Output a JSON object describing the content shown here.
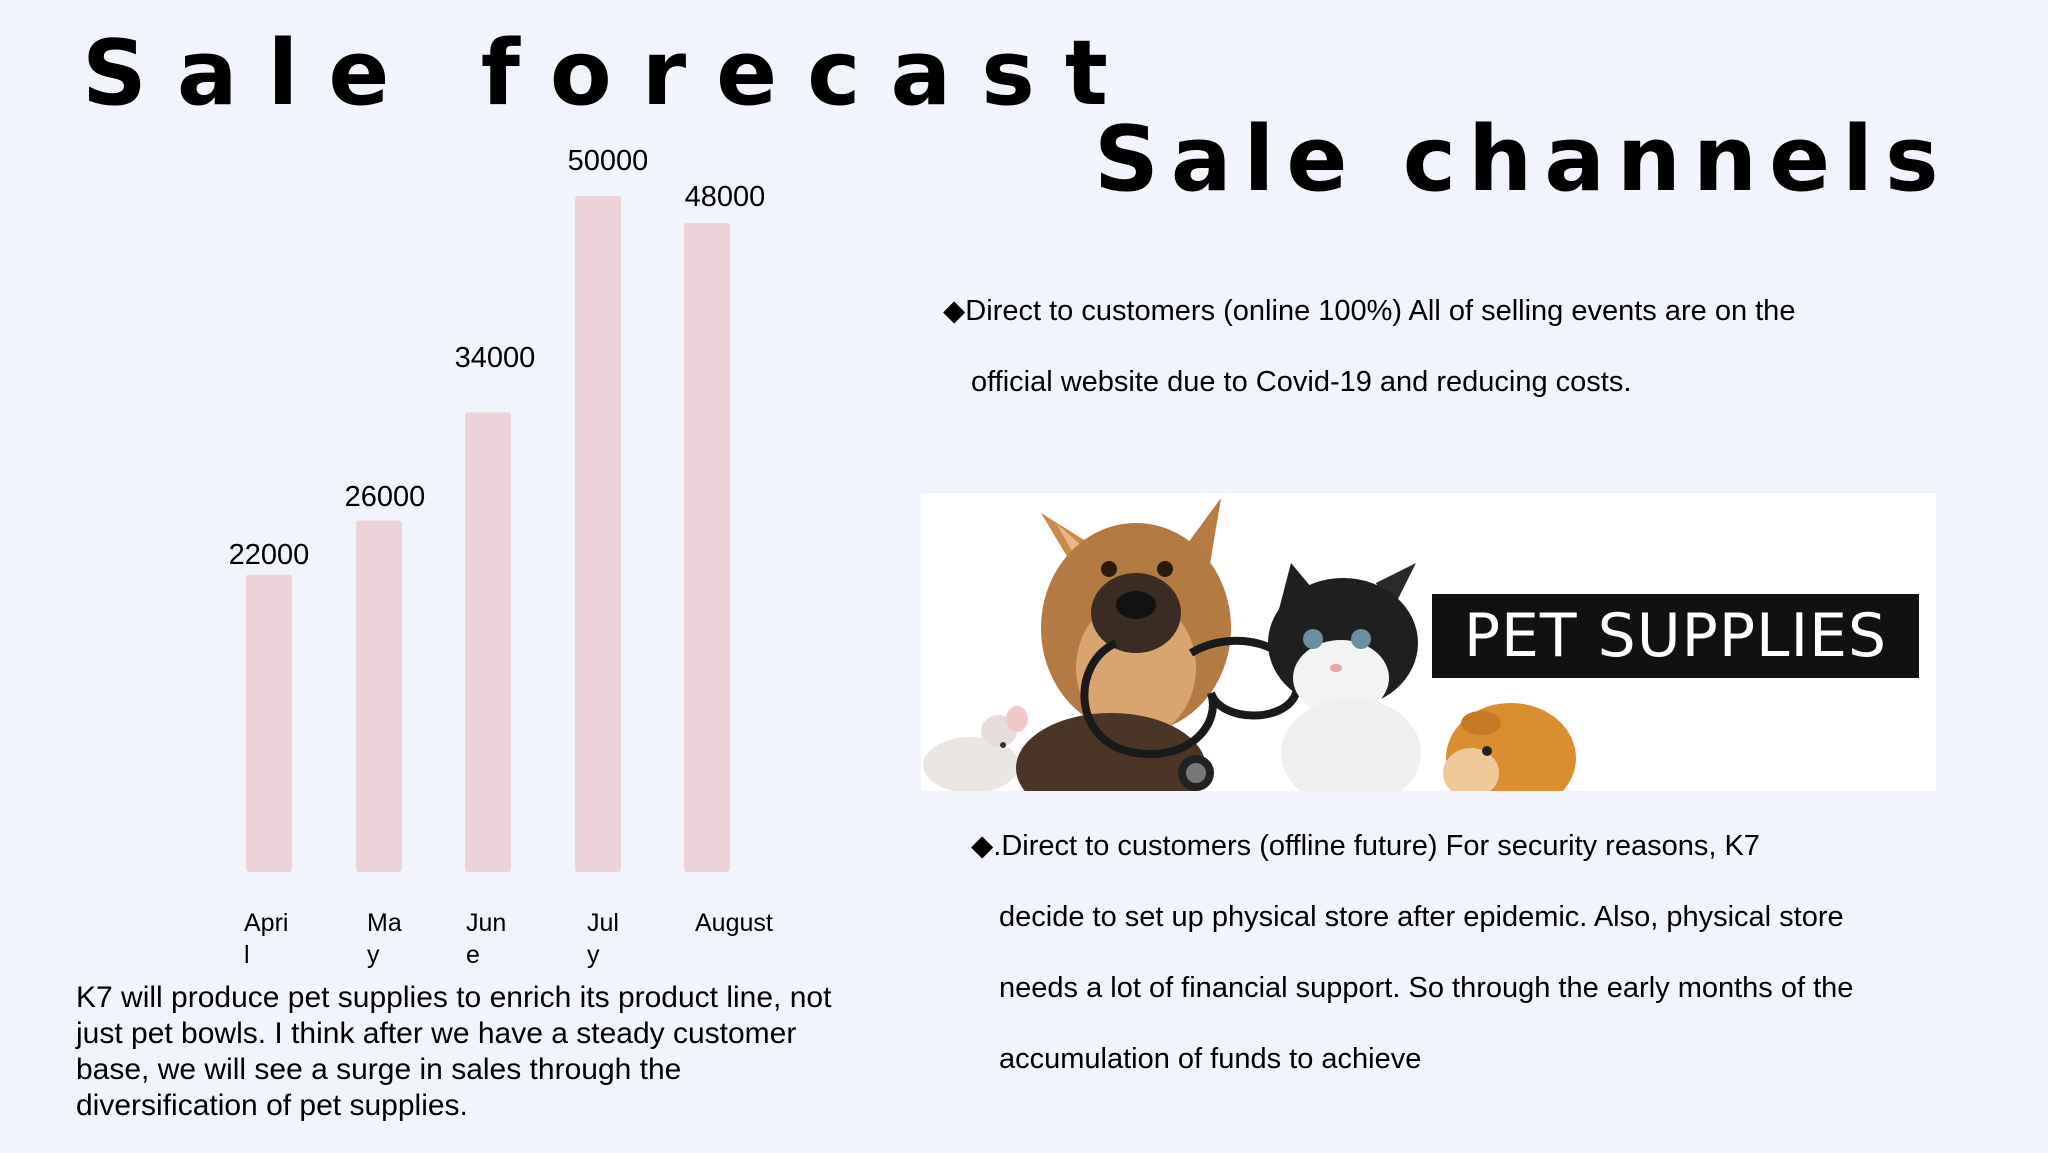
{
  "titles": {
    "left": "Sale forecast",
    "right": "Sale channels"
  },
  "chart_data": {
    "type": "bar",
    "categories": [
      "April",
      "May",
      "June",
      "July",
      "August"
    ],
    "values": [
      22000,
      26000,
      34000,
      50000,
      48000
    ],
    "title": "",
    "xlabel": "",
    "ylabel": "",
    "ylim": [
      0,
      50000
    ],
    "grid": false,
    "bar_color": "#ecd3d9"
  },
  "chart_labels": {
    "values": [
      "22000",
      "26000",
      "34000",
      "50000",
      "48000"
    ],
    "categories": [
      {
        "line1": "Apri",
        "line2": "l"
      },
      {
        "line1": "Ma",
        "line2": "y"
      },
      {
        "line1": "Jun",
        "line2": "e"
      },
      {
        "line1": "Jul",
        "line2": "y"
      },
      {
        "line1": "August",
        "line2": ""
      }
    ]
  },
  "description": "K7 will produce pet supplies to enrich its product line, not just pet bowls. I think after we have a steady customer base, we will see a surge in sales through the diversification of pet supplies.",
  "channels": {
    "online": {
      "lines": [
        "◆Direct to customers (online 100%) All of selling events are on the",
        "official website  due to Covid-19 and reducing costs."
      ]
    },
    "offline": {
      "lines": [
        "◆.Direct to customers (offline future) For security reasons, K7",
        "decide to set up physical store after epidemic. Also, physical store",
        "needs a lot of financial support. So through the early months of the",
        "accumulation of funds to achieve"
      ]
    }
  },
  "banner": {
    "text": "PET SUPPLIES"
  },
  "colors": {
    "background": "#f1f4fb",
    "bar": "#ecd3d9"
  }
}
